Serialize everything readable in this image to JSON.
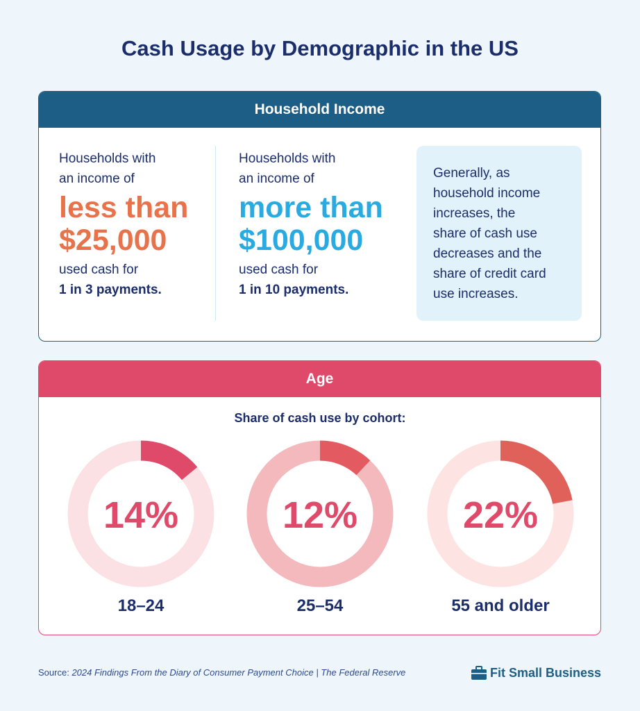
{
  "title": "Cash Usage by Demographic in the US",
  "household": {
    "header": "Household Income",
    "columns": [
      {
        "intro": [
          "Households with",
          "an income of"
        ],
        "highlight": [
          "less than",
          "$25,000"
        ],
        "color": "#e8734a",
        "outro": "used cash for",
        "emphasis": "1 in 3 payments."
      },
      {
        "intro": [
          "Households with",
          "an income of"
        ],
        "highlight": [
          "more than",
          "$100,000"
        ],
        "color": "#29abe2",
        "outro": "used cash for",
        "emphasis": "1 in 10 payments."
      }
    ],
    "note": [
      "Generally, as",
      "household income",
      "increases, the",
      "share of cash use",
      "decreases and the",
      "share of credit card",
      "use increases."
    ]
  },
  "age": {
    "header": "Age",
    "subtitle": "Share of cash use by cohort:"
  },
  "chart_data": [
    {
      "type": "donut",
      "title": "18–24",
      "values": [
        14
      ],
      "value_labels": [
        "14%"
      ],
      "color": "#e04a6a",
      "track_color": "#fbe1e4"
    },
    {
      "type": "donut",
      "title": "25–54",
      "values": [
        12
      ],
      "value_labels": [
        "12%"
      ],
      "color": "#e35a60",
      "track_color": "#f3b9bc"
    },
    {
      "type": "donut",
      "title": "55 and older",
      "values": [
        22
      ],
      "value_labels": [
        "22%"
      ],
      "color": "#e0605a",
      "track_color": "#fde4e2"
    }
  ],
  "source": {
    "label": "Source:",
    "text": "2024 Findings From the Diary of Consumer Payment Choice | The Federal Reserve"
  },
  "brand": "Fit Small Business"
}
